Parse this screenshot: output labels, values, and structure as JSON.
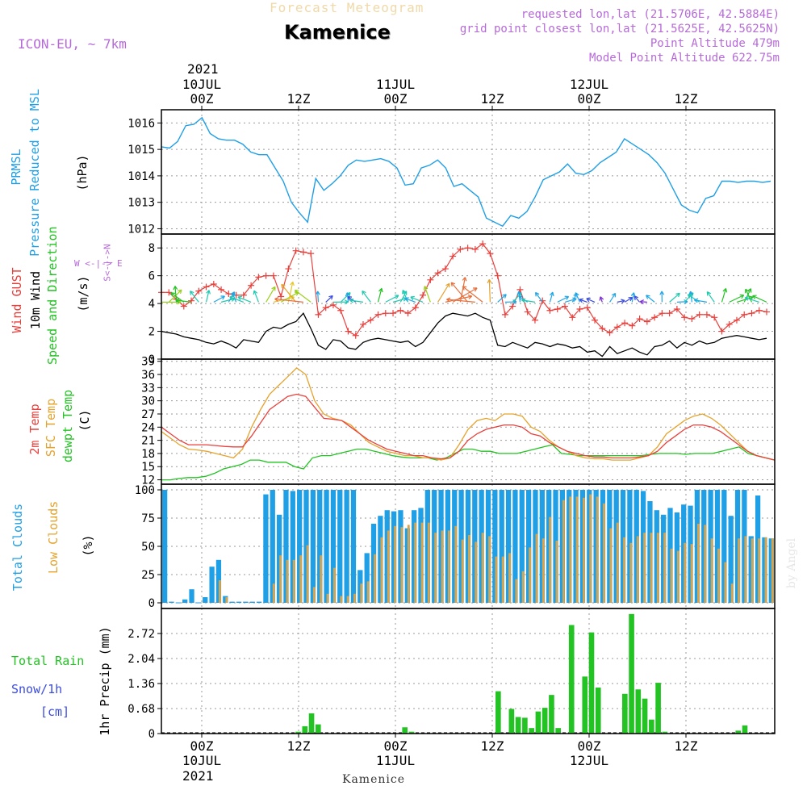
{
  "header": {
    "forecast_title": "Forecast Meteogram",
    "location": "Kamenice",
    "model": "ICON-EU, ~ 7km",
    "requested": "requested lon,lat (21.5706E, 42.5884E)",
    "gridpoint": "grid point closest lon,lat (21.5625E, 42.5625N)",
    "point_alt": "Point Altitude 479m",
    "model_alt": "Model Point Altitude 622.75m",
    "footer_location": "Kamenice",
    "credit": "by Angel",
    "year_top": "2021",
    "year_bottom": "2021"
  },
  "colors": {
    "cyan": "#1f9fe6",
    "red": "#e8403c",
    "orange": "#e6a32c",
    "green": "#22c322",
    "purple": "#b66ad8",
    "black": "#000000"
  },
  "panel_labels": {
    "prmsl": {
      "l1": "PRMSL",
      "l2": "Pressure Reduced to MSL",
      "unit": "(hPa)"
    },
    "wind": {
      "l1": "Wind GUST",
      "l2": "10m Wind",
      "l3": "Speed and Direction",
      "unit": "(m/s)",
      "compass_we": "W <-|-> E",
      "compass_sn": "S<-|->N"
    },
    "temp": {
      "l1": "2m Temp",
      "l2": "SFC Temp",
      "l3": "dewpt Temp",
      "unit": "(C)"
    },
    "clouds": {
      "l1": "Total Clouds",
      "l2": "Low Clouds",
      "unit": "(%)"
    },
    "precip": {
      "l1": "Total  Rain",
      "l2": "Snow/1h",
      "l3": "[cm]",
      "unit": "1hr Precip (mm)"
    }
  },
  "chart_data": {
    "type": "line",
    "time_axis": {
      "hours_from_first": [
        -5,
        0,
        12,
        24,
        36,
        48,
        60,
        71
      ],
      "tick_labels_top": [
        "00Z",
        "12Z",
        "00Z",
        "12Z",
        "00Z",
        "12Z"
      ],
      "date_labels_top": [
        "10JUL",
        "11JUL",
        "12JUL"
      ],
      "tick_labels_bottom": [
        "00Z",
        "12Z",
        "00Z",
        "12Z",
        "00Z",
        "12Z"
      ],
      "date_labels_bottom": [
        "10JUL",
        "11JUL",
        "12JUL"
      ],
      "xlim_hours": [
        -5,
        71
      ]
    },
    "prmsl": {
      "ylabel": "Pressure Reduced to MSL (hPa)",
      "ylim": [
        1011.8,
        1016.5
      ],
      "ticks": [
        1012,
        1013,
        1014,
        1015,
        1016
      ],
      "values": [
        1015.1,
        1015.05,
        1015.3,
        1015.9,
        1015.95,
        1016.2,
        1015.6,
        1015.4,
        1015.35,
        1015.35,
        1015.2,
        1014.9,
        1014.8,
        1014.8,
        1014.3,
        1013.8,
        1013.0,
        1012.6,
        1012.25,
        1013.9,
        1013.45,
        1013.7,
        1014.0,
        1014.4,
        1014.6,
        1014.55,
        1014.6,
        1014.65,
        1014.55,
        1014.3,
        1013.65,
        1013.7,
        1014.3,
        1014.4,
        1014.6,
        1014.3,
        1013.6,
        1013.7,
        1013.45,
        1013.2,
        1012.4,
        1012.25,
        1012.1,
        1012.5,
        1012.4,
        1012.65,
        1013.2,
        1013.85,
        1014.0,
        1014.15,
        1014.45,
        1014.1,
        1014.05,
        1014.2,
        1014.5,
        1014.7,
        1014.9,
        1015.4,
        1015.2,
        1015.0,
        1014.8,
        1014.5,
        1014.1,
        1013.5,
        1012.9,
        1012.7,
        1012.6,
        1013.15,
        1013.25,
        1013.8,
        1013.8,
        1013.75,
        1013.8,
        1013.8,
        1013.75,
        1013.8
      ]
    },
    "wind": {
      "ylabel": "(m/s)",
      "ylim": [
        0,
        9
      ],
      "ticks": [
        0,
        2,
        4,
        6,
        8
      ],
      "gust": [
        4.8,
        4.8,
        4.3,
        3.8,
        4.2,
        4.9,
        5.2,
        5.4,
        5.0,
        4.7,
        4.6,
        4.6,
        5.3,
        5.9,
        6.0,
        6.0,
        4.5,
        6.5,
        7.8,
        7.7,
        7.6,
        3.2,
        3.7,
        3.9,
        3.5,
        2.0,
        1.7,
        2.5,
        2.8,
        3.2,
        3.3,
        3.3,
        3.5,
        3.3,
        3.7,
        4.6,
        5.7,
        6.2,
        6.5,
        7.4,
        7.9,
        8.0,
        7.9,
        8.3,
        7.6,
        6.0,
        3.2,
        3.8,
        5.0,
        3.4,
        2.8,
        4.2,
        3.5,
        3.6,
        3.8,
        3.0,
        3.6,
        3.7,
        2.8,
        2.2,
        1.9,
        2.3,
        2.6,
        2.4,
        2.9,
        2.7,
        3.0,
        3.3,
        3.3,
        3.6,
        3.0,
        2.9,
        3.2,
        3.2,
        3.0,
        2.0,
        2.5,
        2.8,
        3.2,
        3.3,
        3.5,
        3.4
      ],
      "speed": [
        2.0,
        1.9,
        1.8,
        1.6,
        1.5,
        1.4,
        1.2,
        1.1,
        1.3,
        1.1,
        0.8,
        1.4,
        1.3,
        1.2,
        2.0,
        2.3,
        2.2,
        2.5,
        2.7,
        3.3,
        2.2,
        1.0,
        0.7,
        1.4,
        1.3,
        0.8,
        0.7,
        1.2,
        1.4,
        1.5,
        1.4,
        1.3,
        1.2,
        1.3,
        0.9,
        1.2,
        1.9,
        2.6,
        3.1,
        3.3,
        3.2,
        3.1,
        3.3,
        3.0,
        2.8,
        1.0,
        0.9,
        1.2,
        1.0,
        0.8,
        1.2,
        1.1,
        0.9,
        1.1,
        1.0,
        0.8,
        0.9,
        0.5,
        0.6,
        0.2,
        0.9,
        0.4,
        0.6,
        0.8,
        0.5,
        0.3,
        0.9,
        1.0,
        1.3,
        0.8,
        1.2,
        1.0,
        1.3,
        1.1,
        1.2,
        1.5,
        1.6,
        1.7,
        1.6,
        1.5,
        1.4,
        1.5
      ]
    },
    "temp": {
      "ylabel": "(C)",
      "ylim": [
        11,
        39.5
      ],
      "ticks": [
        12,
        15,
        18,
        21,
        24,
        27,
        30,
        33,
        36,
        39
      ],
      "t2m": [
        24.0,
        22.5,
        21.0,
        20.0,
        20.0,
        20.0,
        19.8,
        19.6,
        19.5,
        19.5,
        22.0,
        25.0,
        28.0,
        29.5,
        31.0,
        31.5,
        31.0,
        28.5,
        26.0,
        25.8,
        25.5,
        24.0,
        22.5,
        21.0,
        20.0,
        19.0,
        18.5,
        18.0,
        17.5,
        17.5,
        17.0,
        16.8,
        17.0,
        18.5,
        21.0,
        22.5,
        23.5,
        24.0,
        24.5,
        24.5,
        24.0,
        22.5,
        22.0,
        20.5,
        19.5,
        18.5,
        18.0,
        17.5,
        17.2,
        17.2,
        17.0,
        17.0,
        17.0,
        17.2,
        17.5,
        18.5,
        20.5,
        22.0,
        23.5,
        24.5,
        24.5,
        24.0,
        23.0,
        21.5,
        20.0,
        18.5,
        17.5,
        17.0,
        16.5
      ],
      "sfc": [
        23.0,
        21.5,
        20.0,
        19.0,
        18.8,
        18.5,
        18.0,
        17.5,
        17.0,
        19.0,
        24.0,
        28.0,
        31.5,
        33.5,
        35.5,
        37.5,
        36.0,
        30.0,
        27.0,
        26.0,
        25.5,
        24.5,
        22.5,
        20.5,
        19.5,
        18.5,
        18.0,
        17.5,
        17.5,
        17.0,
        17.0,
        16.5,
        17.0,
        20.0,
        23.5,
        25.5,
        26.0,
        25.5,
        27.0,
        27.0,
        26.5,
        24.0,
        23.0,
        21.0,
        19.5,
        18.5,
        17.5,
        17.0,
        16.8,
        16.8,
        16.5,
        16.5,
        16.5,
        17.0,
        17.5,
        19.5,
        22.5,
        24.0,
        25.5,
        26.5,
        27.0,
        26.0,
        24.5,
        22.5,
        20.5,
        18.5,
        17.5,
        17.0,
        16.5
      ],
      "dew": [
        12.0,
        12.0,
        12.3,
        12.5,
        12.5,
        12.8,
        13.5,
        14.5,
        15.0,
        15.5,
        16.5,
        16.5,
        16.0,
        16.0,
        16.0,
        15.0,
        14.5,
        17.0,
        17.5,
        17.5,
        18.0,
        18.5,
        19.0,
        19.0,
        18.5,
        18.0,
        17.5,
        17.2,
        17.0,
        17.0,
        17.0,
        16.5,
        17.0,
        18.0,
        19.0,
        19.0,
        18.5,
        18.5,
        18.0,
        18.0,
        18.0,
        18.5,
        19.0,
        19.5,
        20.0,
        18.0,
        17.8,
        17.5,
        17.5,
        17.5,
        17.5,
        17.5,
        17.5,
        17.5,
        17.5,
        17.8,
        18.0,
        18.0,
        18.0,
        17.8,
        18.0,
        18.0,
        18.0,
        18.5,
        19.0,
        19.5,
        18.0,
        17.5,
        17.0,
        16.5
      ]
    },
    "clouds": {
      "ylabel": "(%)",
      "ylim": [
        -5,
        105
      ],
      "ticks": [
        0,
        25,
        50,
        75,
        100
      ],
      "total": [
        100,
        1,
        0,
        3,
        12,
        0,
        5,
        32,
        38,
        6,
        1,
        1,
        1,
        1,
        1,
        96,
        100,
        78,
        100,
        99,
        100,
        100,
        100,
        100,
        100,
        100,
        100,
        100,
        100,
        29,
        44,
        70,
        77,
        82,
        81,
        82,
        66,
        82,
        84,
        100,
        100,
        100,
        100,
        100,
        100,
        100,
        100,
        100,
        100,
        100,
        100,
        100,
        100,
        100,
        100,
        100,
        100,
        100,
        100,
        100,
        100,
        100,
        100,
        100,
        100,
        100,
        100,
        100,
        100,
        100,
        100,
        99,
        90,
        82,
        78,
        84,
        80,
        87,
        86,
        100,
        100,
        100,
        100,
        100,
        77,
        100,
        100,
        59,
        95,
        58,
        57
      ],
      "low": [
        0,
        0,
        0,
        0,
        0,
        0,
        0,
        0,
        20,
        5,
        0,
        0,
        0,
        0,
        0,
        0,
        17,
        42,
        38,
        38,
        42,
        51,
        14,
        42,
        8,
        31,
        6,
        6,
        8,
        17,
        19,
        43,
        58,
        64,
        68,
        67,
        69,
        71,
        71,
        71,
        62,
        64,
        64,
        68,
        56,
        60,
        54,
        62,
        59,
        41,
        41,
        44,
        21,
        28,
        49,
        61,
        57,
        76,
        55,
        91,
        94,
        94,
        93,
        96,
        94,
        88,
        66,
        71,
        58,
        53,
        59,
        62,
        62,
        62,
        62,
        48,
        46,
        53,
        52,
        70,
        69,
        57,
        48,
        36,
        17,
        57,
        59,
        57,
        57,
        58,
        57
      ],
      "total_color": "#1f9fe6",
      "low_color": "#d6a44c"
    },
    "precip": {
      "ylabel": "1hr Precip (mm)",
      "ylim": [
        0,
        3.4
      ],
      "ticks": [
        0,
        0.68,
        1.36,
        2.04,
        2.72
      ],
      "tick_labels": [
        "0",
        "0.68",
        "1.36",
        "2.04",
        "2.72"
      ],
      "rain": [
        0,
        0,
        0,
        0,
        0,
        0,
        0,
        0,
        0,
        0,
        0,
        0,
        0,
        0,
        0,
        0,
        0,
        0,
        0,
        0,
        0.05,
        0.2,
        0.55,
        0.25,
        0,
        0,
        0,
        0,
        0,
        0,
        0,
        0,
        0,
        0,
        0,
        0,
        0.17,
        0.05,
        0,
        0,
        0,
        0,
        0,
        0,
        0,
        0,
        0,
        0,
        0,
        0,
        1.15,
        0,
        0.67,
        0.45,
        0.43,
        0.15,
        0.6,
        0.7,
        1.05,
        0.15,
        0,
        2.95,
        0,
        1.55,
        2.75,
        1.25,
        0,
        0,
        0,
        1.08,
        3.25,
        1.2,
        0.95,
        0.38,
        1.38,
        0.05,
        0,
        0,
        0,
        0,
        0,
        0,
        0,
        0,
        0,
        0,
        0.08,
        0.22,
        0,
        0,
        0,
        0
      ]
    }
  }
}
